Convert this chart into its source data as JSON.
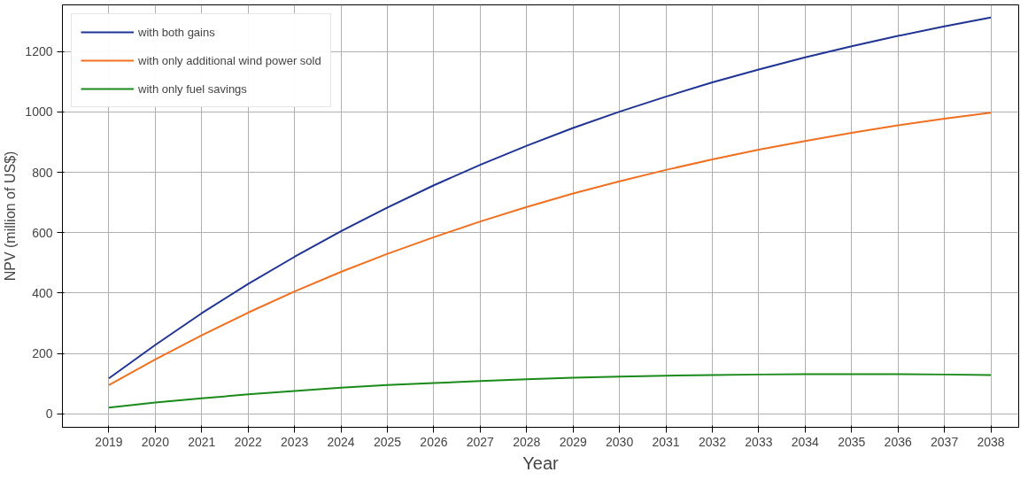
{
  "chart_data": {
    "type": "line",
    "xlabel": "Year",
    "ylabel": "NPV (million of US$)",
    "x": [
      2019,
      2020,
      2021,
      2022,
      2023,
      2024,
      2025,
      2026,
      2027,
      2028,
      2029,
      2030,
      2031,
      2032,
      2033,
      2034,
      2035,
      2036,
      2037,
      2038
    ],
    "series": [
      {
        "name": "with both gains",
        "color": "#1f3494",
        "values": [
          117,
          228,
          333,
          430,
          520,
          605,
          683,
          757,
          825,
          888,
          947,
          1001,
          1051,
          1098,
          1141,
          1181,
          1218,
          1252,
          1284,
          1313
        ]
      },
      {
        "name": "with only additional wind power sold",
        "color": "#f07020",
        "values": [
          95,
          180,
          260,
          335,
          405,
          470,
          530,
          585,
          637,
          685,
          730,
          770,
          808,
          843,
          875,
          904,
          931,
          956,
          978,
          998
        ]
      },
      {
        "name": "with only fuel savings",
        "color": "#1a8a1a",
        "values": [
          20,
          37,
          51,
          64,
          75,
          86,
          95,
          102,
          108,
          114,
          119,
          123,
          126,
          128,
          130,
          131,
          131,
          131,
          130,
          128
        ]
      }
    ],
    "xlim": [
      2018,
      2038.6
    ],
    "ylim": [
      -45,
      1355
    ],
    "xticks": [
      2019,
      2020,
      2021,
      2022,
      2023,
      2024,
      2025,
      2026,
      2027,
      2028,
      2029,
      2030,
      2031,
      2032,
      2033,
      2034,
      2035,
      2036,
      2037,
      2038
    ],
    "yticks": [
      0,
      200,
      400,
      600,
      800,
      1000,
      1200
    ],
    "grid": true,
    "legend": "top left",
    "marker": "none",
    "line_style": "solid"
  }
}
